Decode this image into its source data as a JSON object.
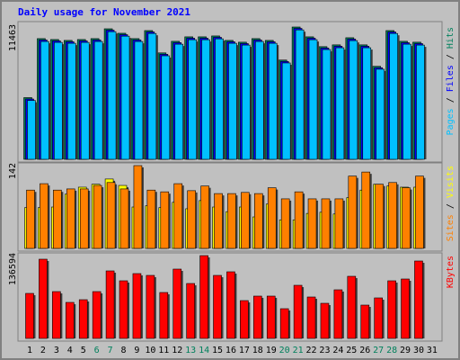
{
  "chart_data": [
    {
      "type": "bar",
      "title": "Daily usage for November 2021",
      "ylim": [
        0,
        11463
      ],
      "yticks": [
        11463
      ],
      "legend_separator": " / ",
      "series": [
        {
          "name": "Pages",
          "color": "#00C0FF",
          "values": [
            5094,
            10206,
            10128,
            10051,
            10128,
            10206,
            11058,
            10670,
            10206,
            10903,
            8967,
            9973,
            10361,
            10361,
            10438,
            10051,
            9896,
            10206,
            10051,
            8347,
            11213,
            10361,
            9509,
            9664,
            10283,
            9664,
            7805,
            10903,
            9973,
            9896,
            null
          ]
        },
        {
          "name": "Files",
          "color": "#0000FF",
          "values": [
            5224,
            10336,
            10258,
            10181,
            10258,
            10336,
            11188,
            10800,
            10336,
            11033,
            9097,
            10103,
            10491,
            10491,
            10568,
            10181,
            10026,
            10336,
            10181,
            8477,
            11343,
            10491,
            9639,
            9794,
            10413,
            9794,
            7935,
            11033,
            10103,
            10026,
            null
          ]
        },
        {
          "name": "Hits",
          "color": "#00805C",
          "values": [
            5344,
            10456,
            10378,
            10301,
            10378,
            10456,
            11308,
            10920,
            10456,
            11153,
            9217,
            10223,
            10611,
            10611,
            10688,
            10301,
            10146,
            10456,
            10301,
            8597,
            11463,
            10611,
            9759,
            9914,
            10533,
            9914,
            8055,
            11153,
            10223,
            10146,
            null
          ]
        }
      ]
    },
    {
      "type": "bar",
      "ylim": [
        0,
        142
      ],
      "yticks": [
        142
      ],
      "legend_separator": " / ",
      "series": [
        {
          "name": "Sites",
          "color": "#FF8000",
          "values": [
            100,
            111,
            100,
            102,
            102,
            108,
            113,
            102,
            142,
            100,
            97,
            111,
            99,
            107,
            94,
            94,
            96,
            94,
            104,
            85,
            97,
            85,
            85,
            85,
            124,
            131,
            110,
            113,
            104,
            124,
            null
          ]
        },
        {
          "name": "Visits",
          "color": "#FFFF00",
          "values": [
            70,
            70,
            71,
            93,
            105,
            110,
            119,
            108,
            71,
            73,
            70,
            79,
            68,
            82,
            71,
            63,
            71,
            54,
            76,
            49,
            49,
            60,
            62,
            59,
            87,
            100,
            110,
            107,
            105,
            105,
            null
          ]
        }
      ]
    },
    {
      "type": "bar",
      "ylim": [
        0,
        136594
      ],
      "yticks": [
        136594
      ],
      "categories": [
        "1",
        "2",
        "3",
        "4",
        "5",
        "6",
        "7",
        "8",
        "9",
        "10",
        "11",
        "12",
        "13",
        "14",
        "15",
        "16",
        "17",
        "18",
        "19",
        "20",
        "21",
        "22",
        "23",
        "24",
        "25",
        "26",
        "27",
        "28",
        "29",
        "30",
        "31"
      ],
      "category_highlight": {
        "indices": [
          5,
          6,
          12,
          13,
          19,
          20,
          26,
          27
        ],
        "color": "#00805C"
      },
      "series": [
        {
          "name": "KBytes",
          "color": "#FF0000",
          "values": [
            74235,
            130654,
            77204,
            59388,
            63842,
            77204,
            111353,
            95021,
            106898,
            103929,
            75720,
            114322,
            90567,
            136594,
            103929,
            109868,
            62357,
            69781,
            69781,
            48995,
            87597,
            68296,
            57903,
            80174,
            102444,
            54934,
            66812,
            95021,
            97990,
            127684,
            null
          ]
        }
      ]
    }
  ]
}
